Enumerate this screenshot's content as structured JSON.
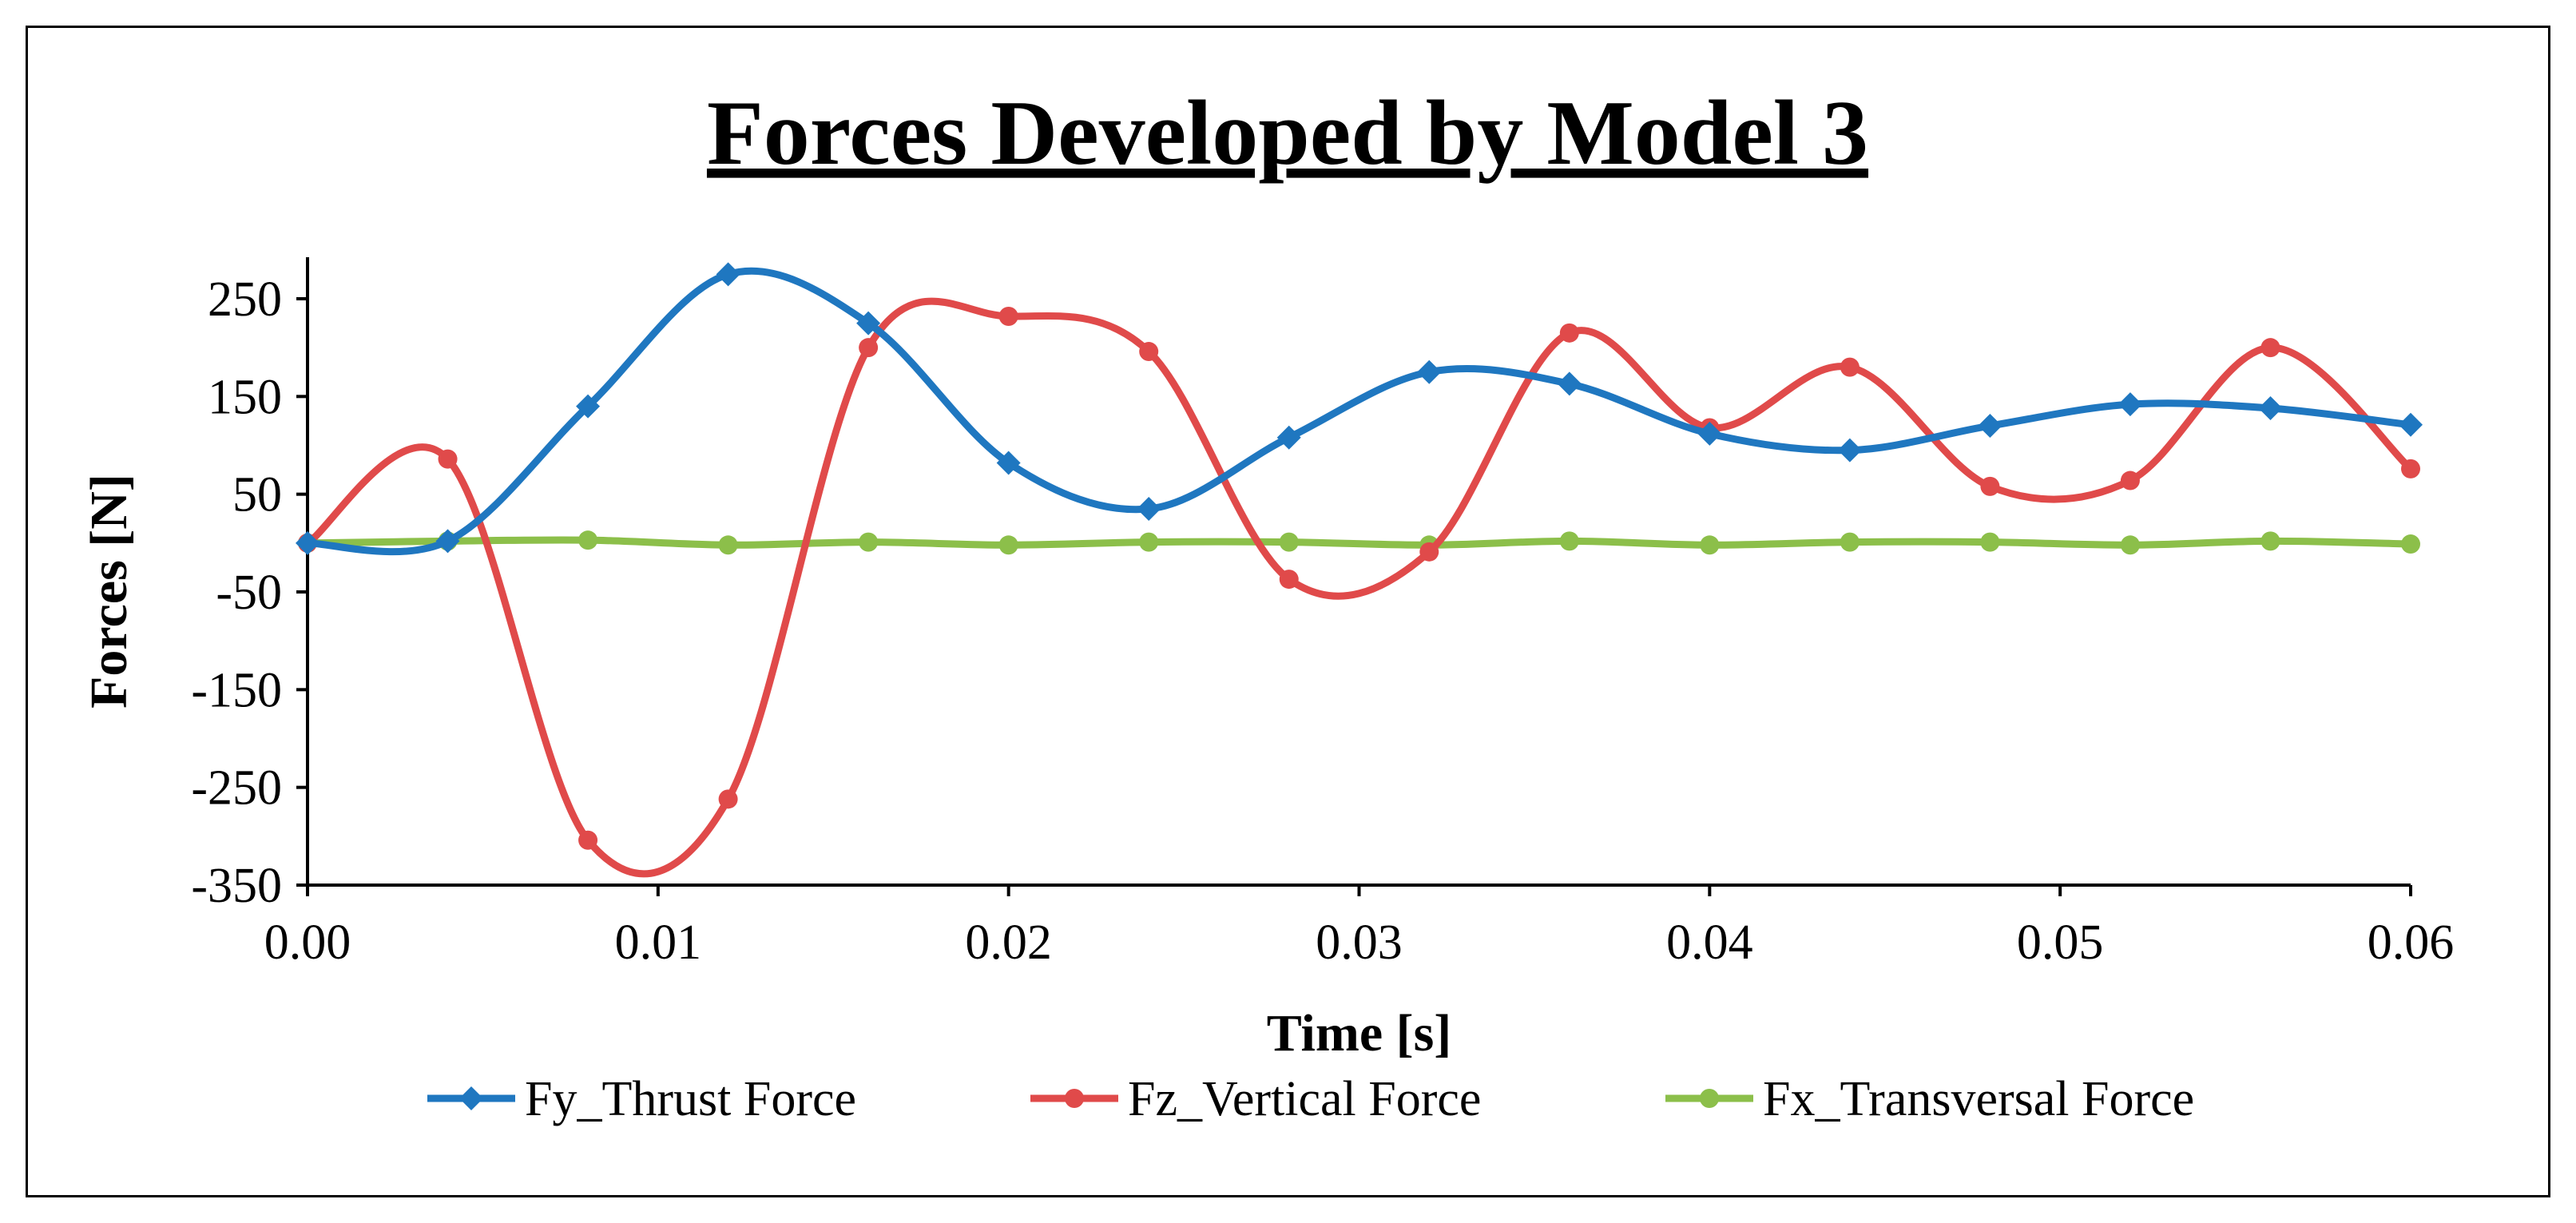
{
  "chart_data": {
    "type": "line",
    "title": "Forces Developed by Model 3",
    "xlabel": "Time [s]",
    "ylabel": "Forces [N]",
    "xlim": [
      0,
      0.06
    ],
    "ylim": [
      -350,
      300
    ],
    "x_ticks": [
      "0.00",
      "0.01",
      "0.02",
      "0.03",
      "0.04",
      "0.05",
      "0.06"
    ],
    "x_tick_values": [
      0,
      0.01,
      0.02,
      0.03,
      0.04,
      0.05,
      0.06
    ],
    "y_ticks": [
      "250",
      "150",
      "50",
      "-50",
      "-150",
      "-250",
      "-350"
    ],
    "y_tick_values": [
      250,
      150,
      50,
      -50,
      -150,
      -250,
      -350
    ],
    "x": [
      0,
      0.004,
      0.008,
      0.012,
      0.016,
      0.02,
      0.024,
      0.028,
      0.032,
      0.036,
      0.04,
      0.044,
      0.048,
      0.052,
      0.056,
      0.06
    ],
    "series": [
      {
        "name": "Fy_Thrust Force",
        "color": "#1f77c0",
        "marker": "diamond",
        "values": [
          0,
          2,
          140,
          275,
          225,
          82,
          35,
          108,
          175,
          163,
          112,
          95,
          120,
          142,
          138,
          121
        ]
      },
      {
        "name": "Fz_Vertical Force",
        "color": "#e04a4a",
        "marker": "circle",
        "values": [
          0,
          86,
          -304,
          -262,
          200,
          232,
          196,
          -37,
          -9,
          215,
          118,
          180,
          58,
          64,
          200,
          76
        ]
      },
      {
        "name": "Fx_Transversal Force",
        "color": "#8cbf4a",
        "marker": "circle",
        "values": [
          0,
          2,
          3,
          -2,
          1,
          -2,
          1,
          1,
          -2,
          2,
          -2,
          1,
          1,
          -2,
          2,
          -1
        ]
      }
    ],
    "legend_position": "bottom",
    "grid": false
  }
}
